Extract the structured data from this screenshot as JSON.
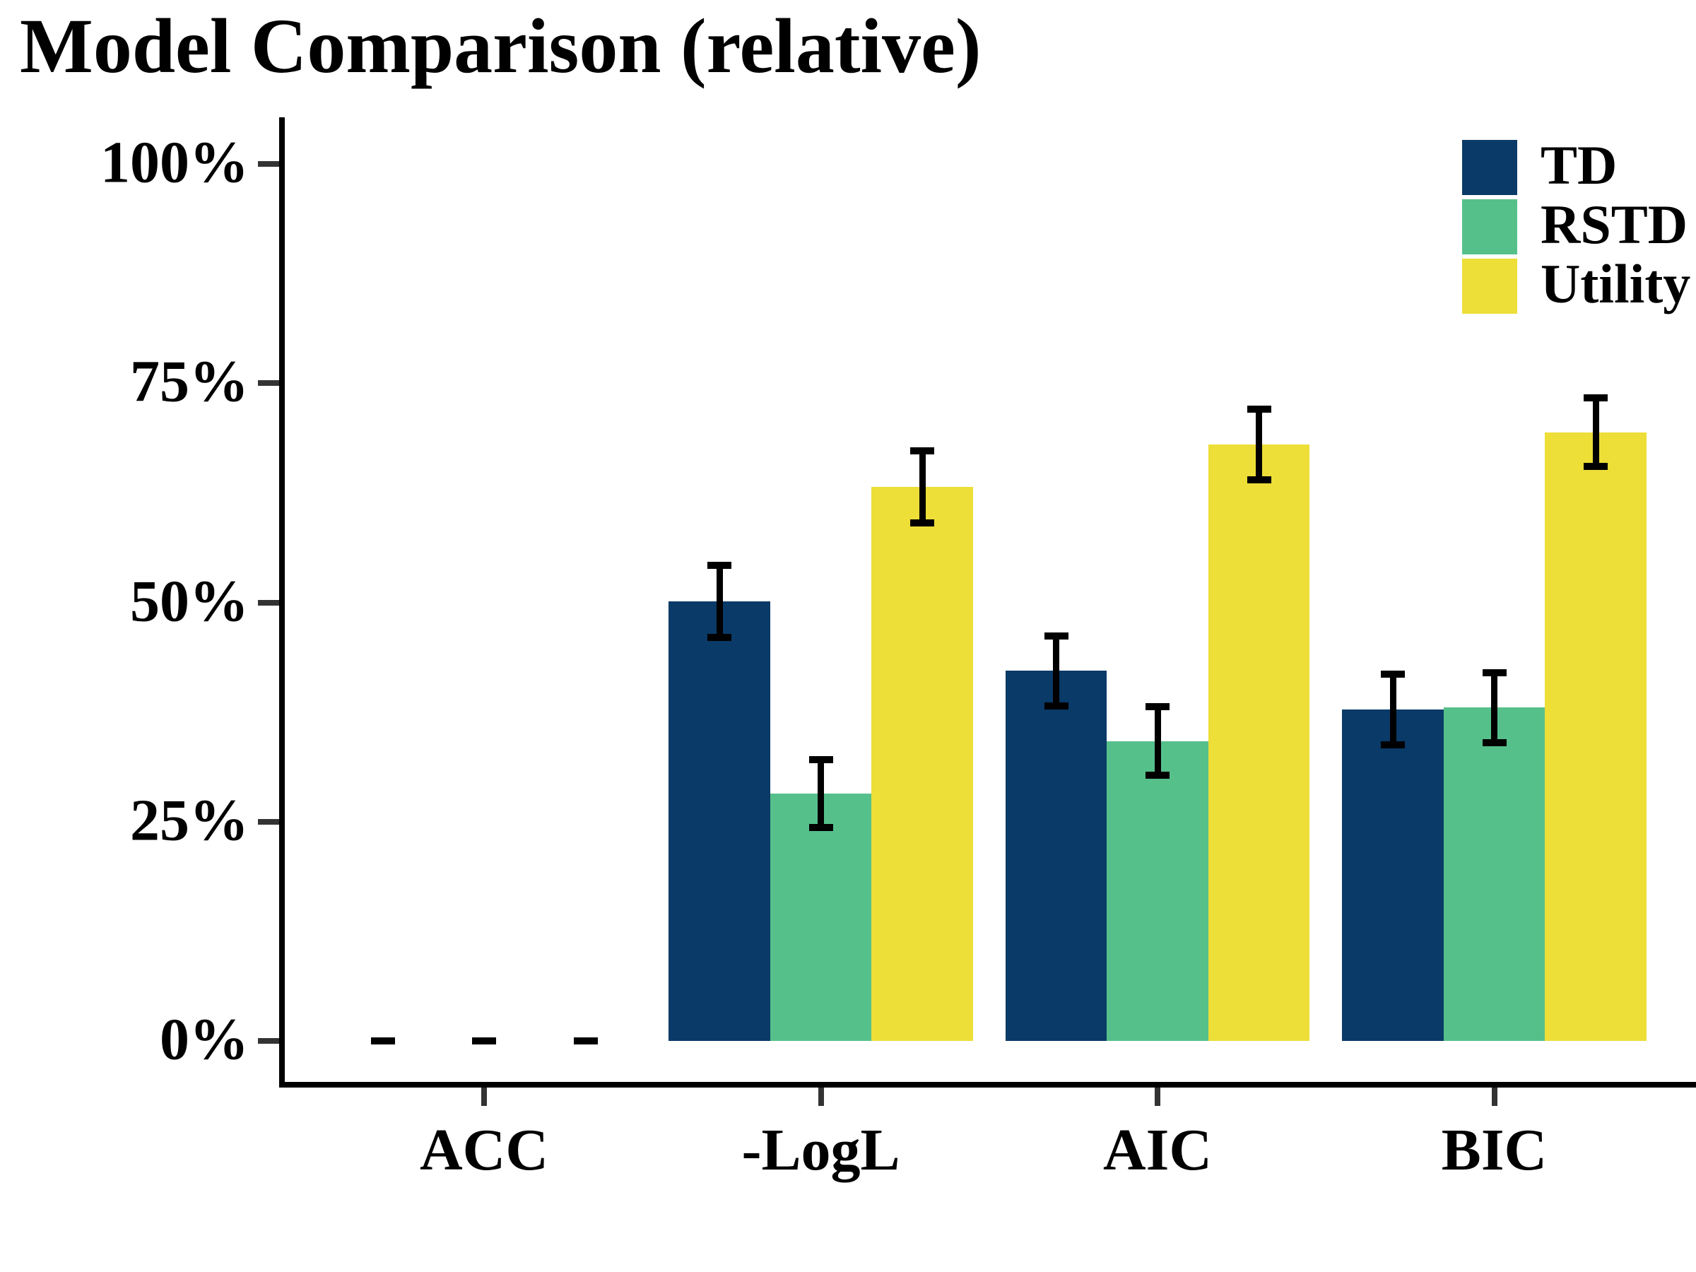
{
  "title": "Model Comparison (relative)",
  "background": "#FFFFFF",
  "axis_color": "#000000",
  "tick_color": "#333333",
  "chart_data": {
    "type": "bar",
    "title": "Model Comparison (relative)",
    "xlabel": "",
    "ylabel": "",
    "categories": [
      "ACC",
      "-LogL",
      "AIC",
      "BIC"
    ],
    "series": [
      {
        "name": "TD",
        "color": "#0A3A67",
        "values": [
          0,
          50.1,
          42.2,
          37.8
        ],
        "errors": [
          0,
          4.1,
          4.0,
          4.0
        ]
      },
      {
        "name": "RSTD",
        "color": "#56C08B",
        "values": [
          0,
          28.2,
          34.2,
          38.0
        ],
        "errors": [
          0,
          3.9,
          3.9,
          4.0
        ]
      },
      {
        "name": "Utility",
        "color": "#EDDE38",
        "values": [
          0,
          63.2,
          68.0,
          69.4
        ],
        "errors": [
          0,
          4.1,
          4.0,
          3.9
        ]
      }
    ],
    "error_bars": true,
    "y_ticks": [
      {
        "value": 0,
        "label": "0%"
      },
      {
        "value": 25,
        "label": "25%"
      },
      {
        "value": 50,
        "label": "50%"
      },
      {
        "value": 75,
        "label": "75%"
      },
      {
        "value": 100,
        "label": "100%"
      }
    ],
    "ylim": [
      0,
      105
    ],
    "grid": false,
    "legend_position": "top-right"
  }
}
